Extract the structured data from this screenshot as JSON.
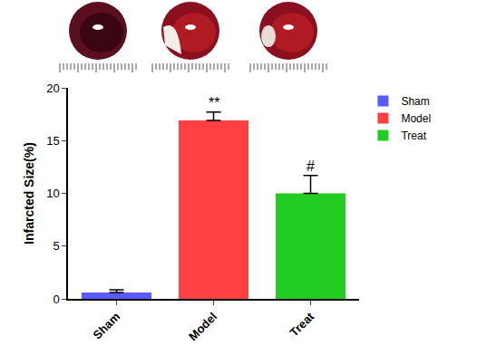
{
  "chart_data": {
    "type": "bar",
    "categories": [
      "Sham",
      "Model",
      "Treat"
    ],
    "series": [
      {
        "name": "Sham",
        "color": "#5a5aff",
        "values": [
          0.6,
          null,
          null
        ],
        "errors": [
          0.25,
          null,
          null
        ]
      },
      {
        "name": "Model",
        "color": "#ff4040",
        "values": [
          null,
          16.9,
          null
        ],
        "errors": [
          null,
          0.8,
          null
        ]
      },
      {
        "name": "Treat",
        "color": "#22cc22",
        "values": [
          null,
          null,
          10.0
        ],
        "errors": [
          null,
          null,
          1.7
        ]
      }
    ],
    "y_label": "Infarcted Size(%)",
    "ylim": [
      0,
      20
    ],
    "yticks": [
      0,
      5,
      10,
      15,
      20
    ],
    "grid": false,
    "legend": "upper right",
    "annotations": [
      {
        "category": "Model",
        "text": "**"
      },
      {
        "category": "Treat",
        "text": "#"
      }
    ]
  }
}
